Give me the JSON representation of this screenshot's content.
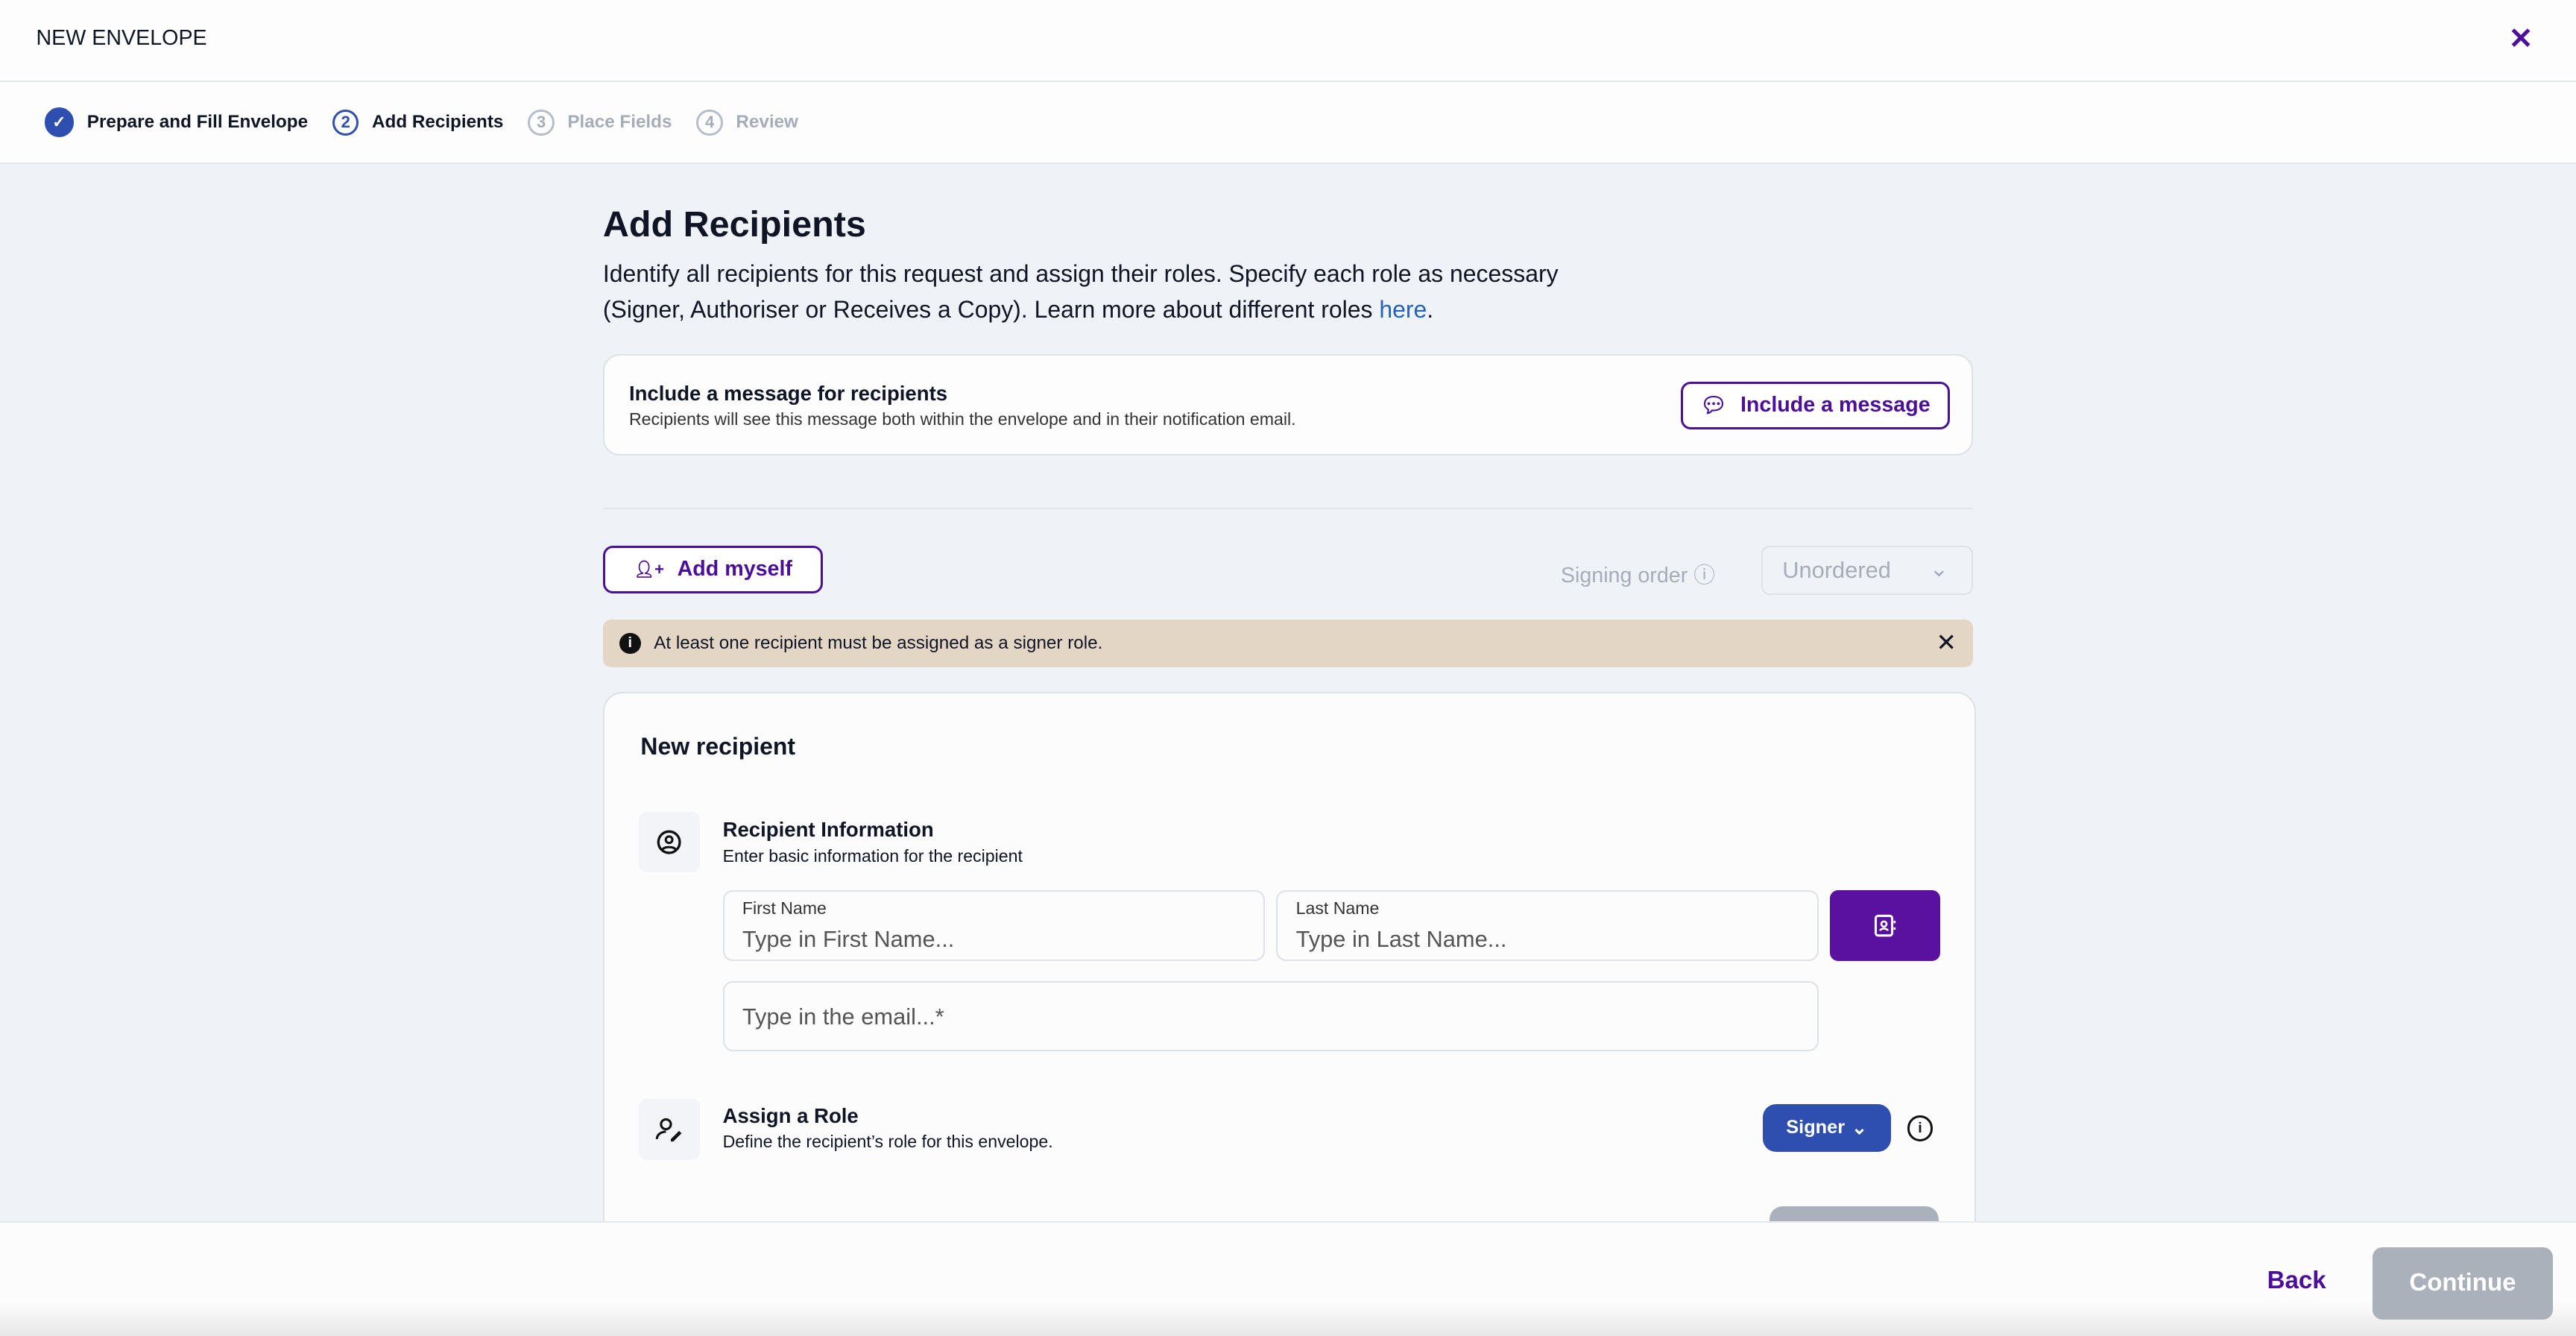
{
  "header": {
    "title": "NEW ENVELOPE",
    "close_icon": "close-icon"
  },
  "steps": [
    {
      "num": "✓",
      "label": "Prepare and Fill Envelope",
      "state": "done"
    },
    {
      "num": "2",
      "label": "Add Recipients",
      "state": "current"
    },
    {
      "num": "3",
      "label": "Place Fields",
      "state": "todo"
    },
    {
      "num": "4",
      "label": "Review",
      "state": "todo"
    }
  ],
  "page": {
    "title": "Add Recipients",
    "intro": "Identify all recipients for this request and assign their roles. Specify each role as necessary (Signer, Authoriser or Receives a Copy). Learn more about different roles ",
    "link": "here",
    "period": "."
  },
  "message": {
    "title": "Include a message for recipients",
    "subtitle": "Recipients will see this message both within the envelope and in their notification email.",
    "button": "Include a message"
  },
  "controls": {
    "add_myself": "Add myself",
    "signing_order_label": "Signing order",
    "signing_order_value": "Unordered"
  },
  "warning": {
    "text": "At least one recipient must be assigned as a signer role."
  },
  "recipient": {
    "heading": "New recipient",
    "info_title": "Recipient Information",
    "info_subtitle": "Enter basic information for the recipient",
    "first_name_label": "First Name",
    "first_name_placeholder": "Type in First Name...",
    "last_name_label": "Last Name",
    "last_name_placeholder": "Type in Last Name...",
    "email_placeholder": "Type in the email...*",
    "role_title": "Assign a Role",
    "role_subtitle": "Define the recipient’s role for this envelope.",
    "role_value": "Signer"
  },
  "footer": {
    "back": "Back",
    "continue": "Continue"
  },
  "colors": {
    "accent": "#4b0f9a",
    "primary_blue": "#2e4fb0",
    "warning_bg": "#e4d6c5",
    "disabled": "#aab1bb"
  }
}
